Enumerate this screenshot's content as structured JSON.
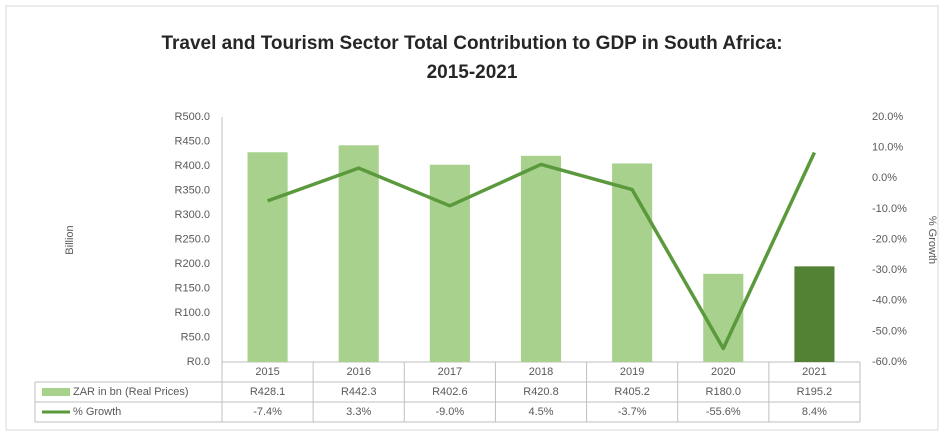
{
  "chart_data": {
    "type": "bar-line",
    "title": [
      "Travel and Tourism Sector Total Contribution to GDP in South Africa:",
      "2015-2021"
    ],
    "ylabel": "Billion",
    "y2label": "% Growth",
    "categories": [
      "2015",
      "2016",
      "2017",
      "2018",
      "2019",
      "2020",
      "2021"
    ],
    "series": [
      {
        "name": "ZAR in bn (Real Prices)",
        "type": "bar",
        "color": "#a9d18e",
        "colors": [
          "#a9d18e",
          "#a9d18e",
          "#a9d18e",
          "#a9d18e",
          "#a9d18e",
          "#a9d18e",
          "#548235"
        ],
        "values": [
          428.1,
          442.3,
          402.6,
          420.8,
          405.2,
          180.0,
          195.2
        ],
        "value_labels": [
          "R428.1",
          "R442.3",
          "R402.6",
          "R420.8",
          "R405.2",
          "R180.0",
          "R195.2"
        ]
      },
      {
        "name": "% Growth",
        "type": "line",
        "axis": "y2",
        "color": "#5b9a3c",
        "values": [
          -7.4,
          3.3,
          -9.0,
          4.5,
          -3.7,
          -55.6,
          8.4
        ],
        "value_labels": [
          "-7.4%",
          "3.3%",
          "-9.0%",
          "4.5%",
          "-3.7%",
          "-55.6%",
          "8.4%"
        ]
      }
    ],
    "ylim": [
      0,
      500
    ],
    "yticks": [
      {
        "value": 0,
        "label": "R0.0"
      },
      {
        "value": 50,
        "label": "R50.0"
      },
      {
        "value": 100,
        "label": "R100.0"
      },
      {
        "value": 150,
        "label": "R150.0"
      },
      {
        "value": 200,
        "label": "R200.0"
      },
      {
        "value": 250,
        "label": "R250.0"
      },
      {
        "value": 300,
        "label": "R300.0"
      },
      {
        "value": 350,
        "label": "R350.0"
      },
      {
        "value": 400,
        "label": "R400.0"
      },
      {
        "value": 450,
        "label": "R450.0"
      },
      {
        "value": 500,
        "label": "R500.0"
      }
    ],
    "y2lim": [
      -60,
      20
    ],
    "y2ticks": [
      {
        "value": -60,
        "label": "-60.0%"
      },
      {
        "value": -50,
        "label": "-50.0%"
      },
      {
        "value": -40,
        "label": "-40.0%"
      },
      {
        "value": -30,
        "label": "-30.0%"
      },
      {
        "value": -20,
        "label": "-20.0%"
      },
      {
        "value": -10,
        "label": "-10.0%"
      },
      {
        "value": 0,
        "label": "0.0%"
      },
      {
        "value": 10,
        "label": "10.0%"
      },
      {
        "value": 20,
        "label": "20.0%"
      }
    ],
    "grid": false
  }
}
